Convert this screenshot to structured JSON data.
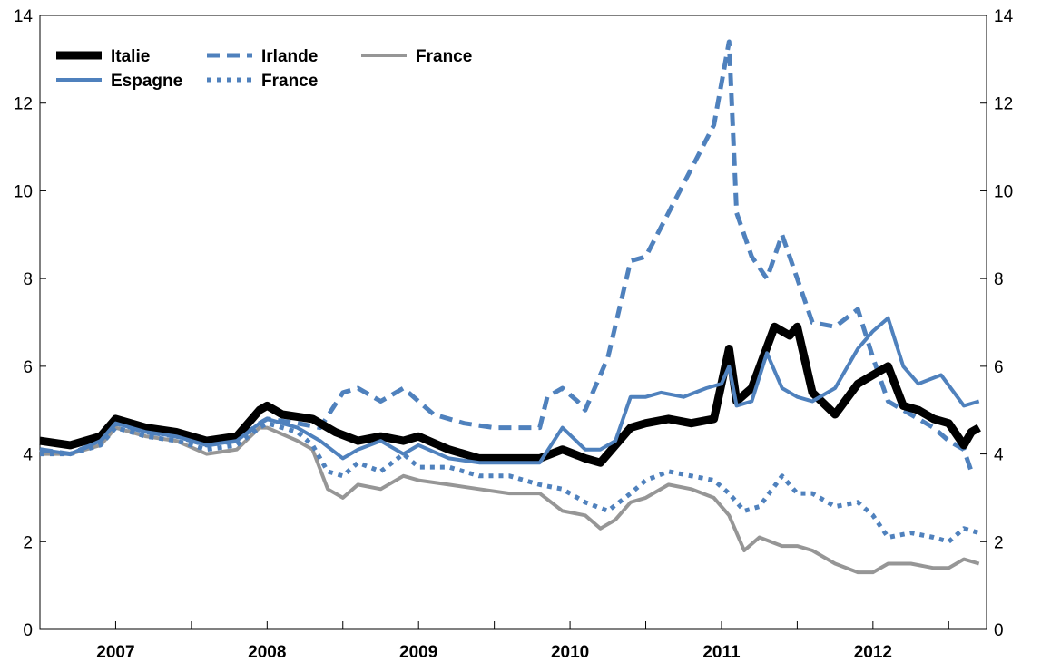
{
  "chart_data": {
    "type": "line",
    "title": "",
    "xlabel": "",
    "ylabel": "",
    "ylim": [
      0,
      14
    ],
    "y_ticks": [
      "0",
      "2",
      "4",
      "6",
      "8",
      "10",
      "12",
      "14"
    ],
    "x_range": [
      2006.5,
      2012.75
    ],
    "x_year_labels": [
      "2007",
      "2008",
      "2009",
      "2010",
      "2011",
      "2012"
    ],
    "legend": [
      {
        "label": "Italie",
        "series": "italie"
      },
      {
        "label": "Espagne",
        "series": "espagne"
      },
      {
        "label": "Irlande",
        "series": "irlande"
      },
      {
        "label": "France",
        "series": "france_dotted"
      },
      {
        "label": "France",
        "series": "france_grey"
      }
    ],
    "series": [
      {
        "key": "italie",
        "name": "Italie",
        "color": "#000000",
        "style": "solid-thick",
        "x": [
          2006.5,
          2006.7,
          2006.9,
          2007.0,
          2007.2,
          2007.4,
          2007.6,
          2007.8,
          2007.95,
          2008.0,
          2008.1,
          2008.3,
          2008.45,
          2008.6,
          2008.75,
          2008.9,
          2009.0,
          2009.2,
          2009.4,
          2009.6,
          2009.8,
          2009.95,
          2010.1,
          2010.2,
          2010.3,
          2010.4,
          2010.5,
          2010.65,
          2010.8,
          2010.95,
          2011.05,
          2011.1,
          2011.2,
          2011.35,
          2011.45,
          2011.5,
          2011.6,
          2011.75,
          2011.9,
          2012.0,
          2012.1,
          2012.2,
          2012.3,
          2012.4,
          2012.5,
          2012.6,
          2012.65,
          2012.7
        ],
        "values": [
          4.3,
          4.2,
          4.4,
          4.8,
          4.6,
          4.5,
          4.3,
          4.4,
          5.0,
          5.1,
          4.9,
          4.8,
          4.5,
          4.3,
          4.4,
          4.3,
          4.4,
          4.1,
          3.9,
          3.9,
          3.9,
          4.1,
          3.9,
          3.8,
          4.2,
          4.6,
          4.7,
          4.8,
          4.7,
          4.8,
          6.4,
          5.2,
          5.5,
          6.9,
          6.7,
          6.9,
          5.4,
          4.9,
          5.6,
          5.8,
          6.0,
          5.1,
          5.0,
          4.8,
          4.7,
          4.2,
          4.5,
          4.6
        ]
      },
      {
        "key": "espagne",
        "name": "Espagne",
        "color": "#4F81BD",
        "style": "solid",
        "x": [
          2006.5,
          2006.7,
          2006.9,
          2007.0,
          2007.2,
          2007.4,
          2007.6,
          2007.8,
          2007.95,
          2008.0,
          2008.2,
          2008.35,
          2008.5,
          2008.6,
          2008.75,
          2008.9,
          2009.0,
          2009.2,
          2009.4,
          2009.6,
          2009.8,
          2009.95,
          2010.1,
          2010.2,
          2010.3,
          2010.4,
          2010.5,
          2010.6,
          2010.75,
          2010.9,
          2011.0,
          2011.05,
          2011.1,
          2011.2,
          2011.3,
          2011.4,
          2011.5,
          2011.6,
          2011.75,
          2011.9,
          2012.0,
          2012.1,
          2012.2,
          2012.3,
          2012.45,
          2012.6,
          2012.7
        ],
        "values": [
          4.1,
          4.0,
          4.3,
          4.7,
          4.5,
          4.4,
          4.2,
          4.3,
          4.7,
          4.8,
          4.6,
          4.3,
          3.9,
          4.1,
          4.3,
          4.0,
          4.2,
          3.9,
          3.8,
          3.8,
          3.8,
          4.6,
          4.1,
          4.1,
          4.3,
          5.3,
          5.3,
          5.4,
          5.3,
          5.5,
          5.6,
          6.0,
          5.1,
          5.2,
          6.3,
          5.5,
          5.3,
          5.2,
          5.5,
          6.4,
          6.8,
          7.1,
          6.0,
          5.6,
          5.8,
          5.1,
          5.2
        ]
      },
      {
        "key": "irlande",
        "name": "Irlande",
        "color": "#4F81BD",
        "style": "dashed",
        "x": [
          2006.5,
          2006.7,
          2006.9,
          2007.0,
          2007.2,
          2007.4,
          2007.6,
          2007.8,
          2007.95,
          2008.0,
          2008.2,
          2008.35,
          2008.5,
          2008.6,
          2008.75,
          2008.9,
          2009.0,
          2009.1,
          2009.3,
          2009.5,
          2009.7,
          2009.8,
          2009.85,
          2009.95,
          2010.05,
          2010.1,
          2010.25,
          2010.4,
          2010.5,
          2010.65,
          2010.8,
          2010.95,
          2011.05,
          2011.1,
          2011.2,
          2011.3,
          2011.4,
          2011.5,
          2011.6,
          2011.75,
          2011.9,
          2012.0,
          2012.1,
          2012.2,
          2012.3,
          2012.4,
          2012.5,
          2012.6,
          2012.65
        ],
        "values": [
          4.1,
          4.0,
          4.3,
          4.7,
          4.5,
          4.4,
          4.2,
          4.3,
          4.7,
          4.8,
          4.7,
          4.6,
          5.4,
          5.5,
          5.2,
          5.5,
          5.2,
          4.9,
          4.7,
          4.6,
          4.6,
          4.6,
          5.3,
          5.5,
          5.2,
          5.0,
          6.2,
          8.4,
          8.5,
          9.5,
          10.5,
          11.5,
          13.4,
          9.5,
          8.5,
          8.0,
          9.0,
          8.0,
          7.0,
          6.9,
          7.3,
          6.2,
          5.2,
          5.0,
          4.8,
          4.6,
          4.3,
          4.1,
          3.6
        ]
      },
      {
        "key": "france_dotted",
        "name": "France",
        "color": "#4F81BD",
        "style": "dotted",
        "x": [
          2006.5,
          2006.7,
          2006.9,
          2007.0,
          2007.2,
          2007.4,
          2007.6,
          2007.8,
          2007.95,
          2008.0,
          2008.2,
          2008.3,
          2008.4,
          2008.5,
          2008.6,
          2008.75,
          2008.9,
          2009.0,
          2009.2,
          2009.4,
          2009.6,
          2009.8,
          2009.95,
          2010.1,
          2010.25,
          2010.4,
          2010.5,
          2010.65,
          2010.8,
          2010.95,
          2011.05,
          2011.15,
          2011.25,
          2011.4,
          2011.5,
          2011.6,
          2011.75,
          2011.9,
          2012.0,
          2012.1,
          2012.25,
          2012.4,
          2012.5,
          2012.6,
          2012.7
        ],
        "values": [
          4.0,
          4.0,
          4.2,
          4.6,
          4.4,
          4.3,
          4.1,
          4.2,
          4.6,
          4.7,
          4.5,
          4.2,
          3.6,
          3.5,
          3.8,
          3.6,
          4.0,
          3.7,
          3.7,
          3.5,
          3.5,
          3.3,
          3.2,
          2.9,
          2.7,
          3.1,
          3.4,
          3.6,
          3.5,
          3.4,
          3.1,
          2.7,
          2.8,
          3.5,
          3.1,
          3.1,
          2.8,
          2.9,
          2.6,
          2.1,
          2.2,
          2.1,
          2.0,
          2.3,
          2.2
        ]
      },
      {
        "key": "france_grey",
        "name": "France",
        "color": "#969696",
        "style": "solid",
        "x": [
          2006.5,
          2006.7,
          2006.9,
          2007.0,
          2007.2,
          2007.4,
          2007.6,
          2007.8,
          2007.95,
          2008.0,
          2008.2,
          2008.3,
          2008.4,
          2008.5,
          2008.6,
          2008.75,
          2008.9,
          2009.0,
          2009.2,
          2009.4,
          2009.6,
          2009.8,
          2009.95,
          2010.1,
          2010.2,
          2010.3,
          2010.4,
          2010.5,
          2010.65,
          2010.8,
          2010.95,
          2011.05,
          2011.15,
          2011.25,
          2011.4,
          2011.5,
          2011.6,
          2011.75,
          2011.9,
          2012.0,
          2012.1,
          2012.25,
          2012.4,
          2012.5,
          2012.6,
          2012.7
        ],
        "values": [
          4.0,
          4.0,
          4.2,
          4.6,
          4.4,
          4.3,
          4.0,
          4.1,
          4.6,
          4.6,
          4.3,
          4.1,
          3.2,
          3.0,
          3.3,
          3.2,
          3.5,
          3.4,
          3.3,
          3.2,
          3.1,
          3.1,
          2.7,
          2.6,
          2.3,
          2.5,
          2.9,
          3.0,
          3.3,
          3.2,
          3.0,
          2.6,
          1.8,
          2.1,
          1.9,
          1.9,
          1.8,
          1.5,
          1.3,
          1.3,
          1.5,
          1.5,
          1.4,
          1.4,
          1.6,
          1.5
        ]
      }
    ]
  }
}
